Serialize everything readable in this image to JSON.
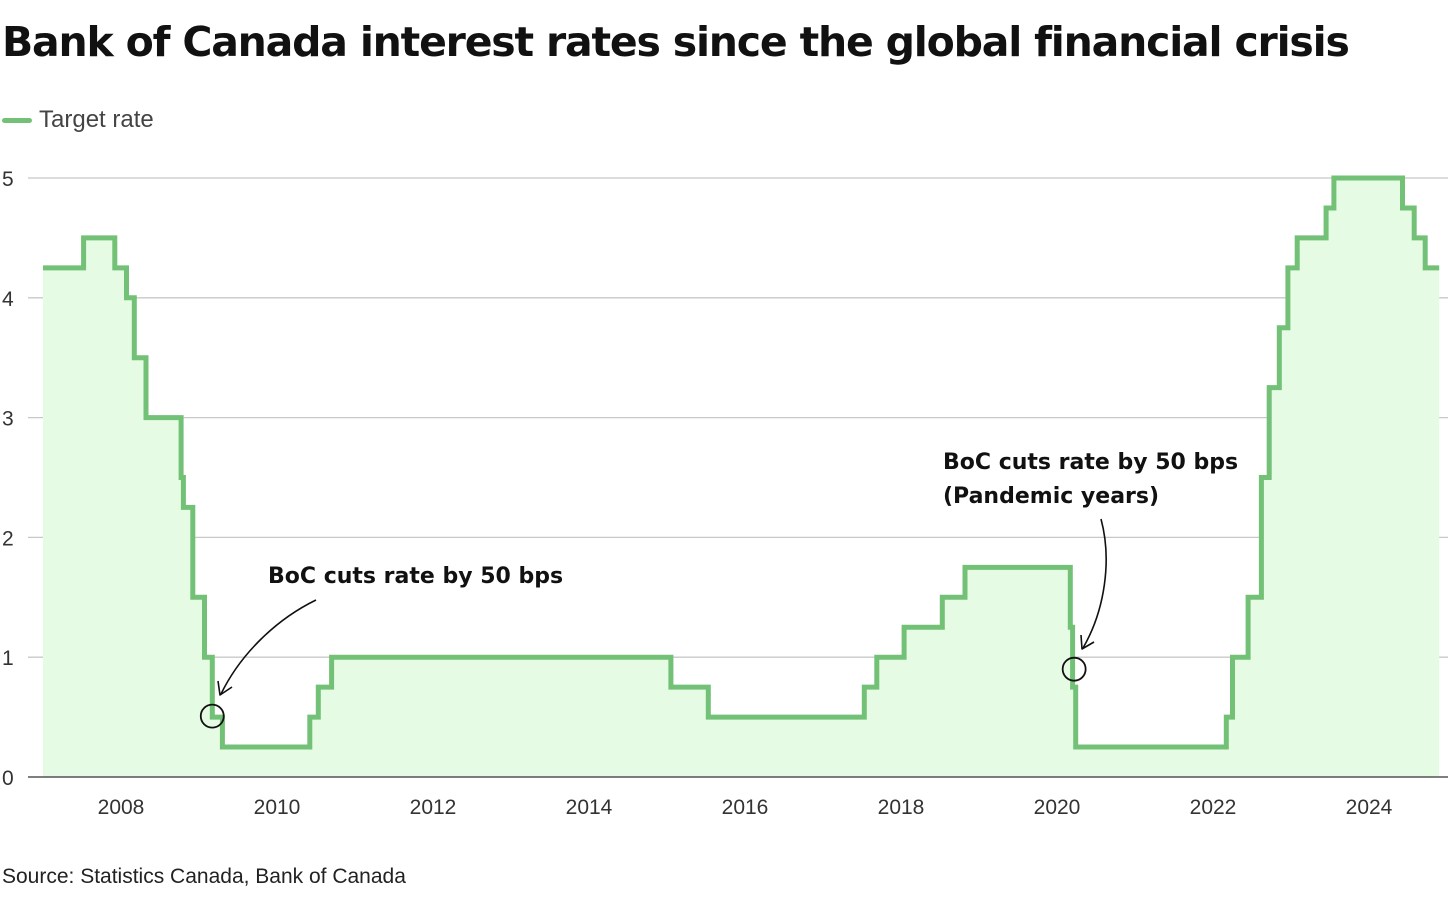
{
  "title": "Bank of Canada interest rates since the global financial crisis",
  "source": "Source: Statistics Canada, Bank of Canada",
  "colors": {
    "line": "#72c177",
    "fill": "#e6fbe4",
    "grid": "#c8c8c8",
    "annotation": "#111111"
  },
  "chart_data": {
    "type": "area",
    "line_shape": "step",
    "title": "Bank of Canada interest rates since the global financial crisis",
    "xlabel": "",
    "ylabel": "",
    "xlim": [
      2006.85,
      2024.95
    ],
    "ylim": [
      0,
      5
    ],
    "grid": true,
    "legend_position": "top-left",
    "x_ticks": [
      2008,
      2010,
      2012,
      2014,
      2016,
      2018,
      2020,
      2022,
      2024
    ],
    "x_tick_labels": [
      "2008",
      "2010",
      "2012",
      "2014",
      "2016",
      "2018",
      "2020",
      "2022",
      "2024"
    ],
    "y_ticks": [
      0,
      1,
      2,
      3,
      4,
      5
    ],
    "y_tick_labels": [
      "0",
      "1",
      "2",
      "3",
      "4",
      "5"
    ],
    "series": [
      {
        "name": "Target rate",
        "x": [
          2007.0,
          2007.52,
          2007.92,
          2008.07,
          2008.17,
          2008.32,
          2008.77,
          2008.8,
          2008.92,
          2009.07,
          2009.17,
          2009.3,
          2010.42,
          2010.53,
          2010.7,
          2015.05,
          2015.53,
          2017.53,
          2017.69,
          2018.04,
          2018.53,
          2018.82,
          2020.17,
          2020.2,
          2020.24,
          2022.17,
          2022.25,
          2022.45,
          2022.62,
          2022.72,
          2022.85,
          2022.96,
          2023.08,
          2023.45,
          2023.55,
          2024.43,
          2024.58,
          2024.72,
          2024.9
        ],
        "y": [
          4.25,
          4.5,
          4.25,
          4.0,
          3.5,
          3.0,
          2.5,
          2.25,
          1.5,
          1.0,
          0.5,
          0.25,
          0.5,
          0.75,
          1.0,
          0.75,
          0.5,
          0.75,
          1.0,
          1.25,
          1.5,
          1.75,
          1.25,
          0.75,
          0.25,
          0.5,
          1.0,
          1.5,
          2.5,
          3.25,
          3.75,
          4.25,
          4.5,
          4.75,
          5.0,
          4.75,
          4.5,
          4.25,
          4.25
        ]
      }
    ],
    "annotations": [
      {
        "lines": [
          "BoC cuts rate by 50 bps"
        ],
        "point": [
          2009.17,
          0.5
        ]
      },
      {
        "lines": [
          "BoC cuts rate by 50 bps",
          "(Pandemic years)"
        ],
        "point": [
          2020.22,
          0.9
        ]
      }
    ]
  }
}
